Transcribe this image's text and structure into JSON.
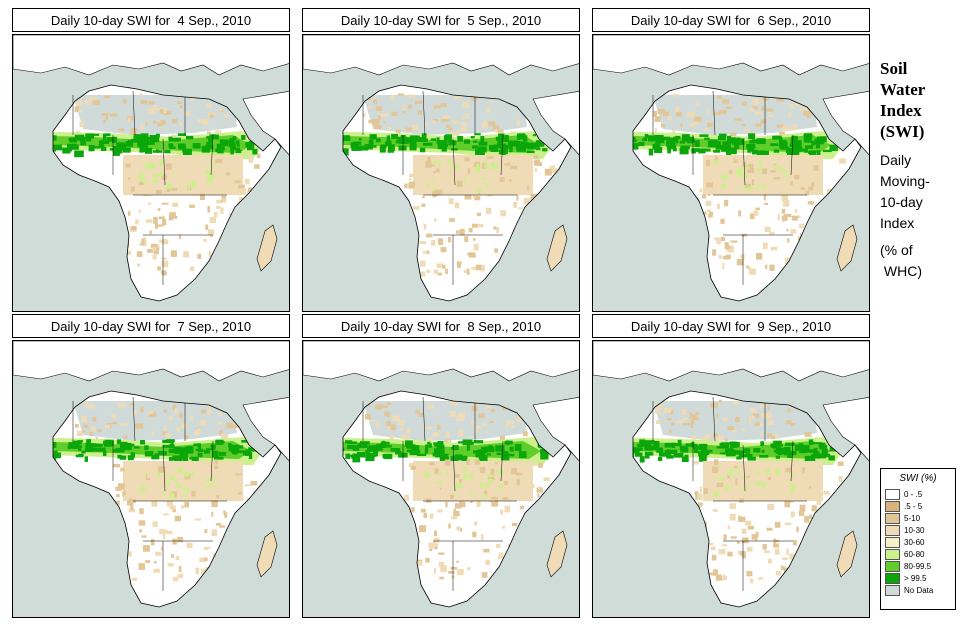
{
  "panels": [
    {
      "title": "Daily 10-day SWI for  4 Sep., 2010"
    },
    {
      "title": "Daily 10-day SWI for  5 Sep., 2010"
    },
    {
      "title": "Daily 10-day SWI for  6 Sep., 2010"
    },
    {
      "title": "Daily 10-day SWI for  7 Sep., 2010"
    },
    {
      "title": "Daily 10-day SWI for  8 Sep., 2010"
    },
    {
      "title": "Daily 10-day SWI for  9 Sep., 2010"
    }
  ],
  "side": {
    "title_lines": [
      "Soil",
      "Water",
      "Index",
      "(SWI)"
    ],
    "desc_lines": [
      "Daily",
      "Moving-",
      "10-day",
      "Index"
    ],
    "unit_lines": [
      "(% of",
      " WHC)"
    ]
  },
  "legend": {
    "title": "SWI (%)",
    "items": [
      {
        "label": "0 - .5",
        "color": "#ffffff"
      },
      {
        "label": ".5 - 5",
        "color": "#d8b47c"
      },
      {
        "label": "5-10",
        "color": "#e3c697"
      },
      {
        "label": "10-30",
        "color": "#efdcb6"
      },
      {
        "label": "30-60",
        "color": "#f7f0c6"
      },
      {
        "label": "60-80",
        "color": "#ccf08c"
      },
      {
        "label": "80-99.5",
        "color": "#5fcd2a"
      },
      {
        "label": "> 99.5",
        "color": "#0aa60a"
      },
      {
        "label": "No Data",
        "color": "#d0dbd9"
      }
    ]
  },
  "colors": {
    "ocean": "#cfdcd7",
    "land_dry": "#ffffff",
    "no_data": "#d0dbd9",
    "wet": "#0aa60a",
    "moist": "#5fcd2a",
    "light": "#ccf08c",
    "tan": "#e3c697",
    "cream": "#efdcb6"
  }
}
